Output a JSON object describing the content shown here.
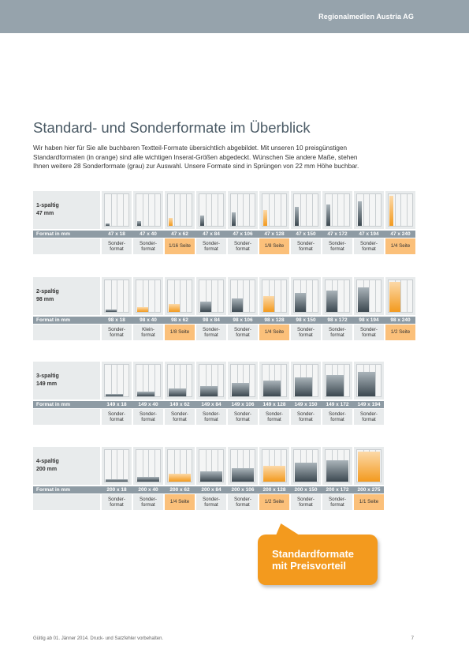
{
  "header": {
    "brand": "Regionalmedien Austria AG"
  },
  "title": "Standard- und Sonderformate im Überblick",
  "intro_lines": [
    "Wir haben hier für Sie alle buchbaren Textteil-Formate übersichtlich abgebildet. Mit unseren 10 preisgünstigen",
    "Standardformaten (in orange) sind alle wichtigen Inserat-Größen abgedeckt. Wünschen Sie andere Maße, stehen",
    "Ihnen weitere 28 Sonderformate (grau) zur Auswahl.  Unsere Formate sind in Sprüngen von 22 mm Höhe buchbar."
  ],
  "format_header": "Format in mm",
  "groups": [
    {
      "label1": "1-spaltig",
      "label2": "47 mm",
      "cols": 1,
      "formats": [
        {
          "size": "47 x 18",
          "type": "Sonder-\nformat",
          "std": false,
          "h": 0.075
        },
        {
          "size": "47 x 40",
          "type": "Sonder-\nformat",
          "std": false,
          "h": 0.167
        },
        {
          "size": "47 x 62",
          "type": "1/16 Seite",
          "std": true,
          "h": 0.258
        },
        {
          "size": "47 x 84",
          "type": "Sonder-\nformat",
          "std": false,
          "h": 0.35
        },
        {
          "size": "47 x 106",
          "type": "Sonder-\nformat",
          "std": false,
          "h": 0.442
        },
        {
          "size": "47 x 128",
          "type": "1/8 Seite",
          "std": true,
          "h": 0.533
        },
        {
          "size": "47 x 150",
          "type": "Sonder-\nformat",
          "std": false,
          "h": 0.625
        },
        {
          "size": "47 x 172",
          "type": "Sonder-\nformat",
          "std": false,
          "h": 0.717
        },
        {
          "size": "47 x 194",
          "type": "Sonder-\nformat",
          "std": false,
          "h": 0.808
        },
        {
          "size": "47 x 240",
          "type": "1/4 Seite",
          "std": true,
          "h": 1.0
        }
      ]
    },
    {
      "label1": "2-spaltig",
      "label2": "98 mm",
      "cols": 2,
      "formats": [
        {
          "size": "98 x 18",
          "type": "Sonder-\nformat",
          "std": false,
          "h": 0.075
        },
        {
          "size": "98 x 40",
          "type": "Klein-\nformat",
          "std": false,
          "h": 0.167,
          "orangefill": true
        },
        {
          "size": "98 x 62",
          "type": "1/8 Seite",
          "std": true,
          "h": 0.258
        },
        {
          "size": "98 x 84",
          "type": "Sonder-\nformat",
          "std": false,
          "h": 0.35
        },
        {
          "size": "98 x 106",
          "type": "Sonder-\nformat",
          "std": false,
          "h": 0.442
        },
        {
          "size": "98 x 128",
          "type": "1/4 Seite",
          "std": true,
          "h": 0.533
        },
        {
          "size": "98 x 150",
          "type": "Sonder-\nformat",
          "std": false,
          "h": 0.625
        },
        {
          "size": "98 x 172",
          "type": "Sonder-\nformat",
          "std": false,
          "h": 0.717
        },
        {
          "size": "98 x 194",
          "type": "Sonder-\nformat",
          "std": false,
          "h": 0.808
        },
        {
          "size": "98 x 240",
          "type": "1/2 Seite",
          "std": true,
          "h": 1.0
        }
      ]
    },
    {
      "label1": "3-spaltig",
      "label2": "149 mm",
      "cols": 3,
      "formats": [
        {
          "size": "149 x 18",
          "type": "Sonder-\nformat",
          "std": false,
          "h": 0.075
        },
        {
          "size": "149 x 40",
          "type": "Sonder-\nformat",
          "std": false,
          "h": 0.167
        },
        {
          "size": "149 x 62",
          "type": "Sonder-\nformat",
          "std": false,
          "h": 0.258
        },
        {
          "size": "149 x 84",
          "type": "Sonder-\nformat",
          "std": false,
          "h": 0.35
        },
        {
          "size": "149 x 106",
          "type": "Sonder-\nformat",
          "std": false,
          "h": 0.442
        },
        {
          "size": "149 x 128",
          "type": "Sonder-\nformat",
          "std": false,
          "h": 0.533
        },
        {
          "size": "149 x 150",
          "type": "Sonder-\nformat",
          "std": false,
          "h": 0.625
        },
        {
          "size": "149 x 172",
          "type": "Sonder-\nformat",
          "std": false,
          "h": 0.717
        },
        {
          "size": "149 x 194",
          "type": "Sonder-\nformat",
          "std": false,
          "h": 0.808
        }
      ]
    },
    {
      "label1": "4-spaltig",
      "label2": "200 mm",
      "cols": 4,
      "formats": [
        {
          "size": "200 x 18",
          "type": "Sonder-\nformat",
          "std": false,
          "h": 0.075
        },
        {
          "size": "200 x 40",
          "type": "Sonder-\nformat",
          "std": false,
          "h": 0.167
        },
        {
          "size": "200 x 62",
          "type": "1/4 Seite",
          "std": true,
          "h": 0.258
        },
        {
          "size": "200 x 84",
          "type": "Sonder-\nformat",
          "std": false,
          "h": 0.35
        },
        {
          "size": "200 x 106",
          "type": "Sonder-\nformat",
          "std": false,
          "h": 0.442
        },
        {
          "size": "200 x 128",
          "type": "1/2 Seite",
          "std": true,
          "h": 0.533
        },
        {
          "size": "200 x 150",
          "type": "Sonder-\nformat",
          "std": false,
          "h": 0.625
        },
        {
          "size": "200 x 172",
          "type": "Sonder-\nformat",
          "std": false,
          "h": 0.717
        },
        {
          "size": "200 x 275",
          "type": "1/1 Seite",
          "std": true,
          "h": 1.0
        }
      ]
    }
  ],
  "callout": {
    "line1": "Standardformate",
    "line2": "mit Preisvorteil"
  },
  "footer": "Gültig ab 01. Jänner 2014. Druck- und Satzfehler vorbehalten.",
  "page_number": "7",
  "colors": {
    "standard": "#f39a1e",
    "sonder": "#8e9ba4",
    "topbar": "#96a3ac"
  }
}
